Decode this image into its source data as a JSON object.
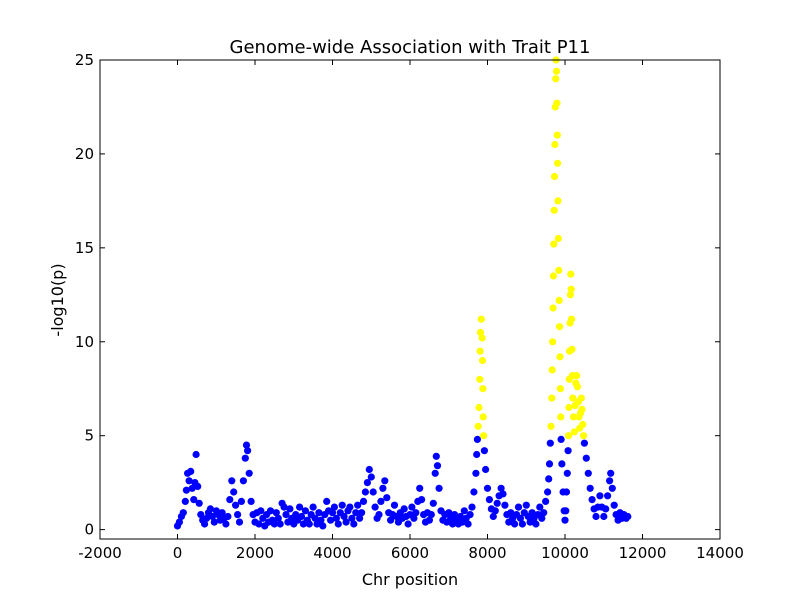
{
  "chart_data": {
    "type": "scatter",
    "title": "Genome-wide Association with Trait P11",
    "xlabel": "Chr position",
    "ylabel": "-log10(p)",
    "xlim": [
      -2000,
      14000
    ],
    "ylim": [
      -0.5,
      25
    ],
    "xticks": [
      -2000,
      0,
      2000,
      4000,
      6000,
      8000,
      10000,
      12000,
      14000
    ],
    "yticks": [
      0,
      5,
      10,
      15,
      20,
      25
    ],
    "grid": false,
    "legend": "none",
    "threshold": 5,
    "colors": {
      "below_threshold": "#0000ff",
      "above_threshold": "#ffff00"
    },
    "points": [
      [
        0,
        0.2
      ],
      [
        50,
        0.4
      ],
      [
        100,
        0.7
      ],
      [
        150,
        0.9
      ],
      [
        200,
        1.5
      ],
      [
        230,
        2.1
      ],
      [
        260,
        3.0
      ],
      [
        300,
        2.6
      ],
      [
        340,
        3.1
      ],
      [
        380,
        2.2
      ],
      [
        420,
        1.6
      ],
      [
        450,
        2.5
      ],
      [
        480,
        4.0
      ],
      [
        520,
        2.3
      ],
      [
        560,
        1.4
      ],
      [
        600,
        0.8
      ],
      [
        650,
        0.5
      ],
      [
        700,
        0.3
      ],
      [
        750,
        0.6
      ],
      [
        800,
        0.9
      ],
      [
        850,
        1.1
      ],
      [
        900,
        0.7
      ],
      [
        950,
        0.4
      ],
      [
        1000,
        1.0
      ],
      [
        1050,
        0.8
      ],
      [
        1100,
        0.5
      ],
      [
        1150,
        0.9
      ],
      [
        1200,
        0.6
      ],
      [
        1250,
        0.3
      ],
      [
        1300,
        0.7
      ],
      [
        1350,
        1.6
      ],
      [
        1400,
        2.6
      ],
      [
        1450,
        2.0
      ],
      [
        1500,
        1.3
      ],
      [
        1550,
        0.8
      ],
      [
        1600,
        0.4
      ],
      [
        1650,
        1.5
      ],
      [
        1700,
        2.6
      ],
      [
        1750,
        3.8
      ],
      [
        1780,
        4.5
      ],
      [
        1810,
        4.2
      ],
      [
        1850,
        3.0
      ],
      [
        1900,
        1.5
      ],
      [
        1950,
        0.8
      ],
      [
        2000,
        0.4
      ],
      [
        2050,
        0.9
      ],
      [
        2100,
        0.3
      ],
      [
        2150,
        1.0
      ],
      [
        2200,
        0.6
      ],
      [
        2250,
        0.2
      ],
      [
        2300,
        0.8
      ],
      [
        2350,
        0.4
      ],
      [
        2400,
        1.0
      ],
      [
        2450,
        0.5
      ],
      [
        2500,
        0.3
      ],
      [
        2550,
        0.9
      ],
      [
        2600,
        0.6
      ],
      [
        2650,
        0.3
      ],
      [
        2700,
        1.4
      ],
      [
        2750,
        1.2
      ],
      [
        2800,
        0.8
      ],
      [
        2850,
        0.4
      ],
      [
        2900,
        1.1
      ],
      [
        2950,
        0.6
      ],
      [
        3000,
        0.3
      ],
      [
        3050,
        0.8
      ],
      [
        3100,
        0.5
      ],
      [
        3150,
        1.2
      ],
      [
        3200,
        0.7
      ],
      [
        3250,
        0.3
      ],
      [
        3300,
        1.0
      ],
      [
        3350,
        0.5
      ],
      [
        3400,
        0.3
      ],
      [
        3450,
        0.8
      ],
      [
        3500,
        1.2
      ],
      [
        3550,
        0.6
      ],
      [
        3600,
        0.3
      ],
      [
        3650,
        0.9
      ],
      [
        3700,
        0.5
      ],
      [
        3750,
        0.2
      ],
      [
        3800,
        0.8
      ],
      [
        3850,
        1.5
      ],
      [
        3900,
        1.0
      ],
      [
        3950,
        0.5
      ],
      [
        4000,
        0.9
      ],
      [
        4050,
        1.2
      ],
      [
        4100,
        0.6
      ],
      [
        4150,
        0.3
      ],
      [
        4200,
        0.9
      ],
      [
        4250,
        1.3
      ],
      [
        4300,
        0.7
      ],
      [
        4350,
        0.4
      ],
      [
        4400,
        1.0
      ],
      [
        4450,
        1.2
      ],
      [
        4500,
        0.6
      ],
      [
        4550,
        0.3
      ],
      [
        4600,
        0.9
      ],
      [
        4650,
        1.3
      ],
      [
        4700,
        0.6
      ],
      [
        4750,
        0.9
      ],
      [
        4800,
        1.5
      ],
      [
        4850,
        2.0
      ],
      [
        4900,
        2.5
      ],
      [
        4950,
        3.2
      ],
      [
        5000,
        2.8
      ],
      [
        5050,
        2.0
      ],
      [
        5100,
        1.2
      ],
      [
        5150,
        0.6
      ],
      [
        5200,
        0.8
      ],
      [
        5250,
        1.5
      ],
      [
        5300,
        2.2
      ],
      [
        5350,
        2.6
      ],
      [
        5400,
        1.7
      ],
      [
        5450,
        0.9
      ],
      [
        5500,
        0.5
      ],
      [
        5550,
        0.8
      ],
      [
        5600,
        1.3
      ],
      [
        5650,
        0.7
      ],
      [
        5700,
        0.4
      ],
      [
        5750,
        0.9
      ],
      [
        5800,
        0.6
      ],
      [
        5850,
        1.1
      ],
      [
        5900,
        0.7
      ],
      [
        5950,
        0.3
      ],
      [
        6000,
        0.8
      ],
      [
        6050,
        1.2
      ],
      [
        6100,
        0.6
      ],
      [
        6150,
        0.9
      ],
      [
        6200,
        1.5
      ],
      [
        6250,
        2.2
      ],
      [
        6300,
        1.6
      ],
      [
        6350,
        0.8
      ],
      [
        6400,
        0.4
      ],
      [
        6450,
        0.9
      ],
      [
        6500,
        0.5
      ],
      [
        6550,
        0.8
      ],
      [
        6600,
        1.4
      ],
      [
        6650,
        3.0
      ],
      [
        6680,
        3.9
      ],
      [
        6710,
        3.4
      ],
      [
        6750,
        2.2
      ],
      [
        6800,
        1.0
      ],
      [
        6850,
        0.5
      ],
      [
        6900,
        0.8
      ],
      [
        6950,
        0.4
      ],
      [
        7000,
        0.9
      ],
      [
        7050,
        0.6
      ],
      [
        7100,
        0.3
      ],
      [
        7150,
        0.8
      ],
      [
        7200,
        0.5
      ],
      [
        7250,
        0.3
      ],
      [
        7300,
        0.7
      ],
      [
        7350,
        0.4
      ],
      [
        7400,
        1.0
      ],
      [
        7450,
        0.6
      ],
      [
        7500,
        0.3
      ],
      [
        7550,
        0.8
      ],
      [
        7600,
        1.2
      ],
      [
        7650,
        2.0
      ],
      [
        7700,
        3.0
      ],
      [
        7720,
        4.0
      ],
      [
        7740,
        4.8
      ],
      [
        7760,
        5.5
      ],
      [
        7780,
        6.5
      ],
      [
        7800,
        8.0
      ],
      [
        7810,
        9.5
      ],
      [
        7820,
        10.5
      ],
      [
        7840,
        11.2
      ],
      [
        7860,
        10.2
      ],
      [
        7870,
        9.0
      ],
      [
        7880,
        7.5
      ],
      [
        7890,
        6.0
      ],
      [
        7900,
        5.0
      ],
      [
        7920,
        4.2
      ],
      [
        7950,
        3.2
      ],
      [
        8000,
        2.2
      ],
      [
        8050,
        1.6
      ],
      [
        8100,
        1.1
      ],
      [
        8150,
        0.7
      ],
      [
        8200,
        1.0
      ],
      [
        8250,
        1.4
      ],
      [
        8300,
        1.8
      ],
      [
        8350,
        2.2
      ],
      [
        8400,
        1.9
      ],
      [
        8450,
        1.3
      ],
      [
        8500,
        0.8
      ],
      [
        8550,
        0.4
      ],
      [
        8600,
        0.9
      ],
      [
        8650,
        0.6
      ],
      [
        8700,
        0.3
      ],
      [
        8750,
        0.8
      ],
      [
        8800,
        1.2
      ],
      [
        8850,
        0.6
      ],
      [
        8900,
        0.3
      ],
      [
        8950,
        0.9
      ],
      [
        9000,
        1.3
      ],
      [
        9050,
        0.7
      ],
      [
        9100,
        0.4
      ],
      [
        9150,
        0.9
      ],
      [
        9200,
        0.6
      ],
      [
        9250,
        0.3
      ],
      [
        9300,
        0.8
      ],
      [
        9350,
        1.2
      ],
      [
        9400,
        0.6
      ],
      [
        9450,
        0.9
      ],
      [
        9500,
        1.5
      ],
      [
        9550,
        2.0
      ],
      [
        9580,
        2.7
      ],
      [
        9600,
        3.5
      ],
      [
        9620,
        4.6
      ],
      [
        9640,
        5.5
      ],
      [
        9660,
        7.0
      ],
      [
        9670,
        8.5
      ],
      [
        9680,
        10.0
      ],
      [
        9690,
        11.8
      ],
      [
        9700,
        13.5
      ],
      [
        9710,
        15.2
      ],
      [
        9720,
        17.0
      ],
      [
        9730,
        18.8
      ],
      [
        9740,
        20.5
      ],
      [
        9750,
        22.5
      ],
      [
        9760,
        24.0
      ],
      [
        9770,
        25.0
      ],
      [
        9780,
        24.4
      ],
      [
        9790,
        22.7
      ],
      [
        9800,
        21.0
      ],
      [
        9810,
        19.5
      ],
      [
        9820,
        17.5
      ],
      [
        9830,
        15.5
      ],
      [
        9840,
        13.8
      ],
      [
        9850,
        12.2
      ],
      [
        9860,
        10.8
      ],
      [
        9870,
        9.2
      ],
      [
        9880,
        7.5
      ],
      [
        9890,
        6.0
      ],
      [
        9900,
        4.8
      ],
      [
        9920,
        3.5
      ],
      [
        9950,
        2.0
      ],
      [
        9980,
        1.0
      ],
      [
        10000,
        0.5
      ],
      [
        10020,
        1.0
      ],
      [
        10040,
        2.0
      ],
      [
        10060,
        3.0
      ],
      [
        10080,
        4.2
      ],
      [
        10090,
        5.0
      ],
      [
        10100,
        6.5
      ],
      [
        10110,
        8.0
      ],
      [
        10120,
        9.5
      ],
      [
        10130,
        11.0
      ],
      [
        10140,
        12.5
      ],
      [
        10150,
        13.6
      ],
      [
        10160,
        12.8
      ],
      [
        10170,
        11.2
      ],
      [
        10180,
        9.6
      ],
      [
        10190,
        8.2
      ],
      [
        10200,
        7.0
      ],
      [
        10220,
        6.0
      ],
      [
        10240,
        5.2
      ],
      [
        10260,
        6.6
      ],
      [
        10280,
        7.8
      ],
      [
        10300,
        8.2
      ],
      [
        10320,
        7.6
      ],
      [
        10340,
        6.8
      ],
      [
        10360,
        6.0
      ],
      [
        10380,
        5.4
      ],
      [
        10400,
        6.2
      ],
      [
        10420,
        7.0
      ],
      [
        10440,
        6.4
      ],
      [
        10460,
        5.6
      ],
      [
        10480,
        5.0
      ],
      [
        10500,
        4.6
      ],
      [
        10550,
        3.8
      ],
      [
        10600,
        3.0
      ],
      [
        10650,
        2.2
      ],
      [
        10700,
        1.6
      ],
      [
        10750,
        1.1
      ],
      [
        10800,
        0.7
      ],
      [
        10850,
        1.2
      ],
      [
        10900,
        1.8
      ],
      [
        10950,
        1.2
      ],
      [
        11000,
        0.7
      ],
      [
        11050,
        1.1
      ],
      [
        11100,
        1.8
      ],
      [
        11150,
        2.6
      ],
      [
        11180,
        3.0
      ],
      [
        11220,
        2.2
      ],
      [
        11270,
        1.3
      ],
      [
        11320,
        0.8
      ],
      [
        11370,
        0.5
      ],
      [
        11420,
        0.9
      ],
      [
        11470,
        0.6
      ],
      [
        11520,
        0.8
      ],
      [
        11580,
        0.6
      ],
      [
        11620,
        0.7
      ]
    ]
  }
}
